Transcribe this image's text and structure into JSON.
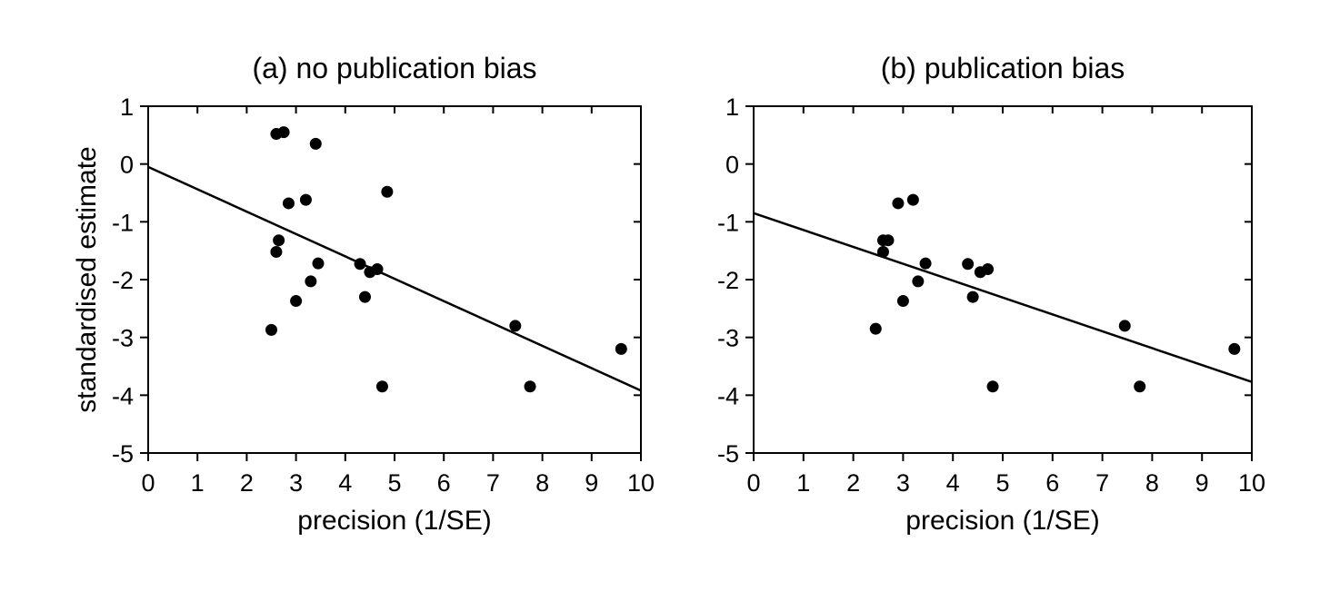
{
  "chart_data": [
    {
      "type": "scatter",
      "title": "(a) no publication bias",
      "xlabel": "precision (1/SE)",
      "ylabel": "standardised estimate",
      "xlim": [
        0,
        10
      ],
      "ylim": [
        -5,
        1
      ],
      "xticks": [
        0,
        1,
        2,
        3,
        4,
        5,
        6,
        7,
        8,
        9,
        10
      ],
      "yticks": [
        -5,
        -4,
        -3,
        -2,
        -1,
        0,
        1
      ],
      "grid": false,
      "legend": "none",
      "points": [
        {
          "x": 2.5,
          "y": -2.87
        },
        {
          "x": 2.6,
          "y": 0.52
        },
        {
          "x": 2.6,
          "y": -1.52
        },
        {
          "x": 2.65,
          "y": -1.32
        },
        {
          "x": 2.75,
          "y": 0.55
        },
        {
          "x": 2.85,
          "y": -0.68
        },
        {
          "x": 3.0,
          "y": -2.37
        },
        {
          "x": 3.2,
          "y": -0.62
        },
        {
          "x": 3.3,
          "y": -2.03
        },
        {
          "x": 3.4,
          "y": 0.35
        },
        {
          "x": 3.45,
          "y": -1.72
        },
        {
          "x": 4.3,
          "y": -1.73
        },
        {
          "x": 4.4,
          "y": -2.3
        },
        {
          "x": 4.5,
          "y": -1.87
        },
        {
          "x": 4.65,
          "y": -1.82
        },
        {
          "x": 4.75,
          "y": -3.85
        },
        {
          "x": 4.85,
          "y": -0.48
        },
        {
          "x": 7.45,
          "y": -2.8
        },
        {
          "x": 7.75,
          "y": -3.85
        },
        {
          "x": 9.6,
          "y": -3.2
        }
      ],
      "fit_line": {
        "x": [
          0,
          10
        ],
        "y": [
          -0.05,
          -3.92
        ]
      }
    },
    {
      "type": "scatter",
      "title": "(b) publication bias",
      "xlabel": "precision (1/SE)",
      "ylabel": "",
      "xlim": [
        0,
        10
      ],
      "ylim": [
        -5,
        1
      ],
      "xticks": [
        0,
        1,
        2,
        3,
        4,
        5,
        6,
        7,
        8,
        9,
        10
      ],
      "yticks": [
        -5,
        -4,
        -3,
        -2,
        -1,
        0,
        1
      ],
      "grid": false,
      "legend": "none",
      "points": [
        {
          "x": 2.45,
          "y": -2.85
        },
        {
          "x": 2.6,
          "y": -1.52
        },
        {
          "x": 2.6,
          "y": -1.32
        },
        {
          "x": 2.7,
          "y": -1.32
        },
        {
          "x": 2.9,
          "y": -0.68
        },
        {
          "x": 3.0,
          "y": -2.37
        },
        {
          "x": 3.2,
          "y": -0.62
        },
        {
          "x": 3.3,
          "y": -2.03
        },
        {
          "x": 3.45,
          "y": -1.72
        },
        {
          "x": 4.3,
          "y": -1.73
        },
        {
          "x": 4.4,
          "y": -2.3
        },
        {
          "x": 4.55,
          "y": -1.87
        },
        {
          "x": 4.7,
          "y": -1.82
        },
        {
          "x": 4.8,
          "y": -3.85
        },
        {
          "x": 7.45,
          "y": -2.8
        },
        {
          "x": 7.75,
          "y": -3.85
        },
        {
          "x": 9.65,
          "y": -3.2
        }
      ],
      "fit_line": {
        "x": [
          0,
          10
        ],
        "y": [
          -0.85,
          -3.77
        ]
      }
    }
  ]
}
